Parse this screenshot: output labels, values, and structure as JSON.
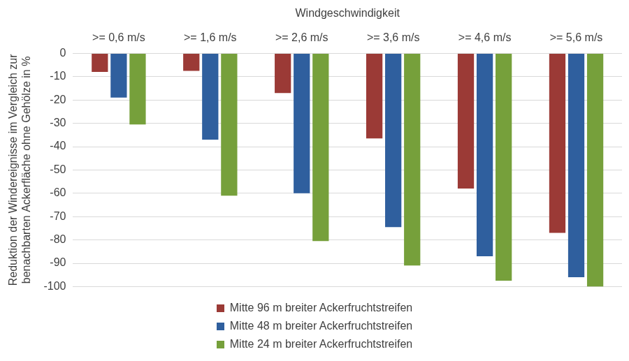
{
  "chart_data": {
    "type": "bar",
    "xlabel": "Windgeschwindigkeit",
    "ylabel": [
      "Reduktion der Windereignisse im Vergleich zur",
      "benachbarten Ackerfläche ohne Gehölze in %"
    ],
    "categories": [
      ">= 0,6 m/s",
      ">= 1,6 m/s",
      ">= 2,6 m/s",
      ">= 3,6 m/s",
      ">= 4,6 m/s",
      ">= 5,6 m/s"
    ],
    "series": [
      {
        "name": "Mitte 96 m breiter Ackerfruchtstreifen",
        "color": "#9b3a36",
        "values": [
          -8,
          -7.5,
          -17,
          -36.5,
          -58,
          -77
        ]
      },
      {
        "name": "Mitte 48 m breiter Ackerfruchtstreifen",
        "color": "#2f5f9e",
        "values": [
          -19,
          -37,
          -60,
          -74.5,
          -87,
          -96
        ]
      },
      {
        "name": "Mitte 24 m breiter Ackerfruchtstreifen",
        "color": "#76a03b",
        "values": [
          -30.5,
          -61,
          -80.5,
          -91,
          -97.5,
          -100
        ]
      }
    ],
    "ylim": [
      -100,
      0
    ],
    "yticks": [
      -100,
      -90,
      -80,
      -70,
      -60,
      -50,
      -40,
      -30,
      -20,
      -10,
      0
    ],
    "grid": true,
    "legend": "bottom"
  }
}
